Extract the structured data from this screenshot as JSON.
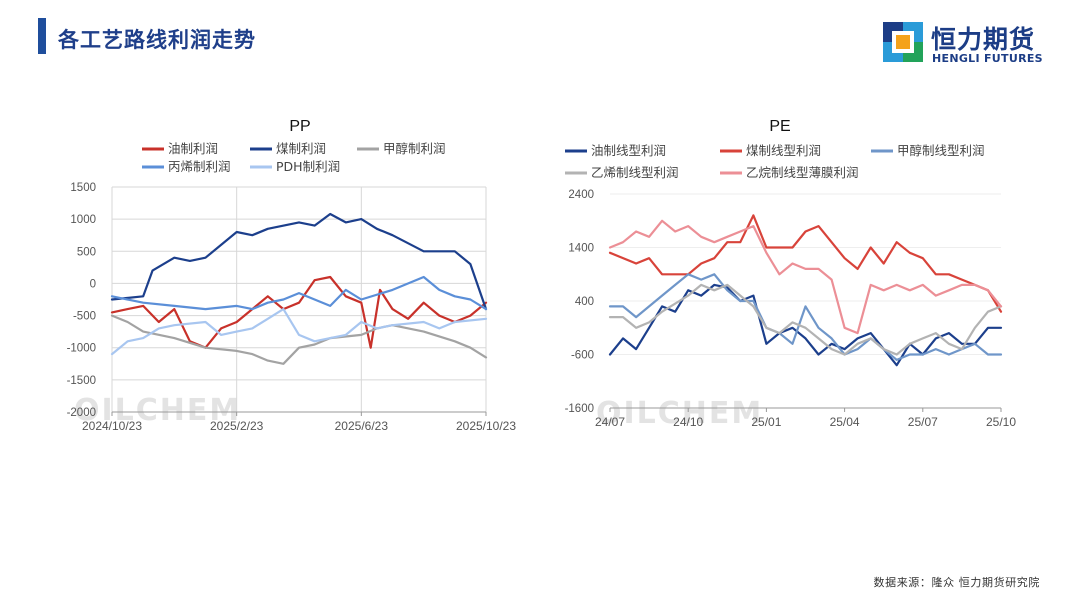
{
  "header": {
    "title": "各工艺路线利润走势"
  },
  "logo": {
    "cn": "恒力期货",
    "en": "HENGLI FUTURES"
  },
  "footer": {
    "source": "数据来源：隆众  恒力期货研究院"
  },
  "watermark": "OILCHEM",
  "chart_data": [
    {
      "type": "line",
      "title": "PP",
      "ylim": [
        -2000,
        1500
      ],
      "yticks": [
        1500,
        1000,
        500,
        0,
        -500,
        -1000,
        -1500,
        -2000
      ],
      "xlim": [
        0,
        12
      ],
      "xticks": [
        {
          "x": 0,
          "label": "2024/10/23"
        },
        {
          "x": 4,
          "label": "2025/2/23"
        },
        {
          "x": 8,
          "label": "2025/6/23"
        },
        {
          "x": 12,
          "label": "2025/10/23"
        }
      ],
      "series": [
        {
          "name": "油制利润",
          "color": "#c8312a",
          "values": [
            [
              0,
              -450
            ],
            [
              0.5,
              -400
            ],
            [
              1,
              -350
            ],
            [
              1.5,
              -600
            ],
            [
              2,
              -400
            ],
            [
              2.5,
              -900
            ],
            [
              3,
              -1000
            ],
            [
              3.5,
              -700
            ],
            [
              4,
              -600
            ],
            [
              4.5,
              -400
            ],
            [
              5,
              -200
            ],
            [
              5.5,
              -400
            ],
            [
              6,
              -300
            ],
            [
              6.5,
              50
            ],
            [
              7,
              100
            ],
            [
              7.5,
              -200
            ],
            [
              8,
              -300
            ],
            [
              8.3,
              -1000
            ],
            [
              8.6,
              -100
            ],
            [
              9,
              -400
            ],
            [
              9.5,
              -550
            ],
            [
              10,
              -300
            ],
            [
              10.5,
              -500
            ],
            [
              11,
              -600
            ],
            [
              11.5,
              -500
            ],
            [
              12,
              -300
            ]
          ]
        },
        {
          "name": "煤制利润",
          "color": "#1c3f8c",
          "values": [
            [
              0,
              -250
            ],
            [
              1,
              -200
            ],
            [
              1.3,
              200
            ],
            [
              2,
              400
            ],
            [
              2.5,
              350
            ],
            [
              3,
              400
            ],
            [
              4,
              800
            ],
            [
              4.5,
              750
            ],
            [
              5,
              850
            ],
            [
              6,
              950
            ],
            [
              6.5,
              900
            ],
            [
              7,
              1080
            ],
            [
              7.5,
              950
            ],
            [
              8,
              1000
            ],
            [
              8.5,
              850
            ],
            [
              9,
              750
            ],
            [
              10,
              500
            ],
            [
              11,
              500
            ],
            [
              11.5,
              300
            ],
            [
              12,
              -400
            ]
          ]
        },
        {
          "name": "甲醇制利润",
          "color": "#a3a3a3",
          "values": [
            [
              0,
              -500
            ],
            [
              0.5,
              -600
            ],
            [
              1,
              -750
            ],
            [
              2,
              -850
            ],
            [
              3,
              -1000
            ],
            [
              4,
              -1050
            ],
            [
              4.5,
              -1100
            ],
            [
              5,
              -1200
            ],
            [
              5.5,
              -1250
            ],
            [
              6,
              -1000
            ],
            [
              6.5,
              -950
            ],
            [
              7,
              -850
            ],
            [
              8,
              -800
            ],
            [
              8.5,
              -700
            ],
            [
              9,
              -650
            ],
            [
              10,
              -750
            ],
            [
              11,
              -900
            ],
            [
              11.5,
              -1000
            ],
            [
              12,
              -1150
            ]
          ]
        },
        {
          "name": "丙烯制利润",
          "color": "#5b8fd8",
          "values": [
            [
              0,
              -200
            ],
            [
              1,
              -300
            ],
            [
              2,
              -350
            ],
            [
              3,
              -400
            ],
            [
              4,
              -350
            ],
            [
              4.5,
              -400
            ],
            [
              5,
              -300
            ],
            [
              5.5,
              -250
            ],
            [
              6,
              -150
            ],
            [
              7,
              -350
            ],
            [
              7.5,
              -100
            ],
            [
              8,
              -250
            ],
            [
              9,
              -100
            ],
            [
              10,
              100
            ],
            [
              10.5,
              -100
            ],
            [
              11,
              -200
            ],
            [
              11.5,
              -250
            ],
            [
              12,
              -400
            ]
          ]
        },
        {
          "name": "PDH制利润",
          "color": "#a8c6f0",
          "values": [
            [
              0,
              -1100
            ],
            [
              0.5,
              -900
            ],
            [
              1,
              -850
            ],
            [
              1.5,
              -700
            ],
            [
              2,
              -650
            ],
            [
              3,
              -600
            ],
            [
              3.5,
              -800
            ],
            [
              4,
              -750
            ],
            [
              4.5,
              -700
            ],
            [
              5,
              -550
            ],
            [
              5.5,
              -400
            ],
            [
              6,
              -800
            ],
            [
              6.5,
              -900
            ],
            [
              7,
              -850
            ],
            [
              7.5,
              -800
            ],
            [
              8,
              -600
            ],
            [
              8.5,
              -700
            ],
            [
              9,
              -650
            ],
            [
              10,
              -600
            ],
            [
              10.5,
              -700
            ],
            [
              11,
              -600
            ],
            [
              12,
              -550
            ]
          ]
        }
      ]
    },
    {
      "type": "line",
      "title": "PE",
      "ylim": [
        -1600,
        2400
      ],
      "yticks": [
        2400,
        1400,
        400,
        -600,
        -1600
      ],
      "xlim": [
        0,
        15
      ],
      "xticks": [
        {
          "x": 0,
          "label": "24/07"
        },
        {
          "x": 3,
          "label": "24/10"
        },
        {
          "x": 6,
          "label": "25/01"
        },
        {
          "x": 9,
          "label": "25/04"
        },
        {
          "x": 12,
          "label": "25/07"
        },
        {
          "x": 15,
          "label": "25/10"
        }
      ],
      "series": [
        {
          "name": "油制线型利润",
          "color": "#1c3f8c",
          "values": [
            [
              0,
              -600
            ],
            [
              0.5,
              -300
            ],
            [
              1,
              -500
            ],
            [
              1.5,
              -100
            ],
            [
              2,
              300
            ],
            [
              2.5,
              200
            ],
            [
              3,
              600
            ],
            [
              3.5,
              500
            ],
            [
              4,
              700
            ],
            [
              4.5,
              650
            ],
            [
              5,
              400
            ],
            [
              5.5,
              500
            ],
            [
              6,
              -400
            ],
            [
              6.5,
              -200
            ],
            [
              7,
              -100
            ],
            [
              7.5,
              -300
            ],
            [
              8,
              -600
            ],
            [
              8.5,
              -400
            ],
            [
              9,
              -500
            ],
            [
              9.5,
              -300
            ],
            [
              10,
              -200
            ],
            [
              10.5,
              -500
            ],
            [
              11,
              -800
            ],
            [
              11.5,
              -400
            ],
            [
              12,
              -600
            ],
            [
              12.5,
              -300
            ],
            [
              13,
              -200
            ],
            [
              13.5,
              -400
            ],
            [
              14,
              -400
            ],
            [
              14.5,
              -100
            ],
            [
              15,
              -100
            ]
          ]
        },
        {
          "name": "煤制线型利润",
          "color": "#d8433a",
          "values": [
            [
              0,
              1300
            ],
            [
              1,
              1100
            ],
            [
              1.5,
              1200
            ],
            [
              2,
              900
            ],
            [
              3,
              900
            ],
            [
              3.5,
              1100
            ],
            [
              4,
              1200
            ],
            [
              4.5,
              1500
            ],
            [
              5,
              1500
            ],
            [
              5.5,
              2000
            ],
            [
              6,
              1400
            ],
            [
              7,
              1400
            ],
            [
              7.5,
              1700
            ],
            [
              8,
              1800
            ],
            [
              8.5,
              1500
            ],
            [
              9,
              1200
            ],
            [
              9.5,
              1000
            ],
            [
              10,
              1400
            ],
            [
              10.5,
              1100
            ],
            [
              11,
              1500
            ],
            [
              11.5,
              1300
            ],
            [
              12,
              1200
            ],
            [
              12.5,
              900
            ],
            [
              13,
              900
            ],
            [
              13.5,
              800
            ],
            [
              14,
              700
            ],
            [
              14.5,
              600
            ],
            [
              15,
              200
            ]
          ]
        },
        {
          "name": "甲醇制线型利润",
          "color": "#6f96c9",
          "values": [
            [
              0,
              300
            ],
            [
              0.5,
              300
            ],
            [
              1,
              100
            ],
            [
              1.5,
              300
            ],
            [
              2,
              500
            ],
            [
              2.5,
              700
            ],
            [
              3,
              900
            ],
            [
              3.5,
              800
            ],
            [
              4,
              900
            ],
            [
              4.5,
              600
            ],
            [
              5,
              400
            ],
            [
              5.5,
              400
            ],
            [
              6,
              -100
            ],
            [
              6.5,
              -200
            ],
            [
              7,
              -400
            ],
            [
              7.5,
              300
            ],
            [
              8,
              -100
            ],
            [
              8.5,
              -300
            ],
            [
              9,
              -600
            ],
            [
              9.5,
              -500
            ],
            [
              10,
              -300
            ],
            [
              10.5,
              -500
            ],
            [
              11,
              -700
            ],
            [
              11.5,
              -600
            ],
            [
              12,
              -600
            ],
            [
              12.5,
              -500
            ],
            [
              13,
              -600
            ],
            [
              13.5,
              -500
            ],
            [
              14,
              -400
            ],
            [
              14.5,
              -600
            ],
            [
              15,
              -600
            ]
          ]
        },
        {
          "name": "乙烯制线型利润",
          "color": "#b3b3b3",
          "values": [
            [
              0,
              100
            ],
            [
              0.5,
              100
            ],
            [
              1,
              -100
            ],
            [
              1.5,
              0
            ],
            [
              2,
              200
            ],
            [
              3,
              500
            ],
            [
              3.5,
              700
            ],
            [
              4,
              600
            ],
            [
              4.5,
              700
            ],
            [
              5,
              500
            ],
            [
              5.5,
              300
            ],
            [
              6,
              -100
            ],
            [
              6.5,
              -200
            ],
            [
              7,
              0
            ],
            [
              7.5,
              -100
            ],
            [
              8,
              -300
            ],
            [
              8.5,
              -500
            ],
            [
              9,
              -600
            ],
            [
              9.5,
              -400
            ],
            [
              10,
              -300
            ],
            [
              10.5,
              -500
            ],
            [
              11,
              -600
            ],
            [
              11.5,
              -400
            ],
            [
              12,
              -300
            ],
            [
              12.5,
              -200
            ],
            [
              13,
              -400
            ],
            [
              13.5,
              -500
            ],
            [
              14,
              -100
            ],
            [
              14.5,
              200
            ],
            [
              15,
              300
            ]
          ]
        },
        {
          "name": "乙烷制线型薄膜利润",
          "color": "#ec8f96",
          "values": [
            [
              0,
              1400
            ],
            [
              0.5,
              1500
            ],
            [
              1,
              1700
            ],
            [
              1.5,
              1600
            ],
            [
              2,
              1900
            ],
            [
              2.5,
              1700
            ],
            [
              3,
              1800
            ],
            [
              3.5,
              1600
            ],
            [
              4,
              1500
            ],
            [
              4.5,
              1600
            ],
            [
              5,
              1700
            ],
            [
              5.5,
              1800
            ],
            [
              6,
              1300
            ],
            [
              6.5,
              900
            ],
            [
              7,
              1100
            ],
            [
              7.5,
              1000
            ],
            [
              8,
              1000
            ],
            [
              8.5,
              800
            ],
            [
              9,
              -100
            ],
            [
              9.5,
              -200
            ],
            [
              10,
              700
            ],
            [
              10.5,
              600
            ],
            [
              11,
              700
            ],
            [
              11.5,
              600
            ],
            [
              12,
              700
            ],
            [
              12.5,
              500
            ],
            [
              13,
              600
            ],
            [
              13.5,
              700
            ],
            [
              14,
              700
            ],
            [
              14.5,
              600
            ],
            [
              15,
              300
            ]
          ]
        }
      ]
    }
  ]
}
